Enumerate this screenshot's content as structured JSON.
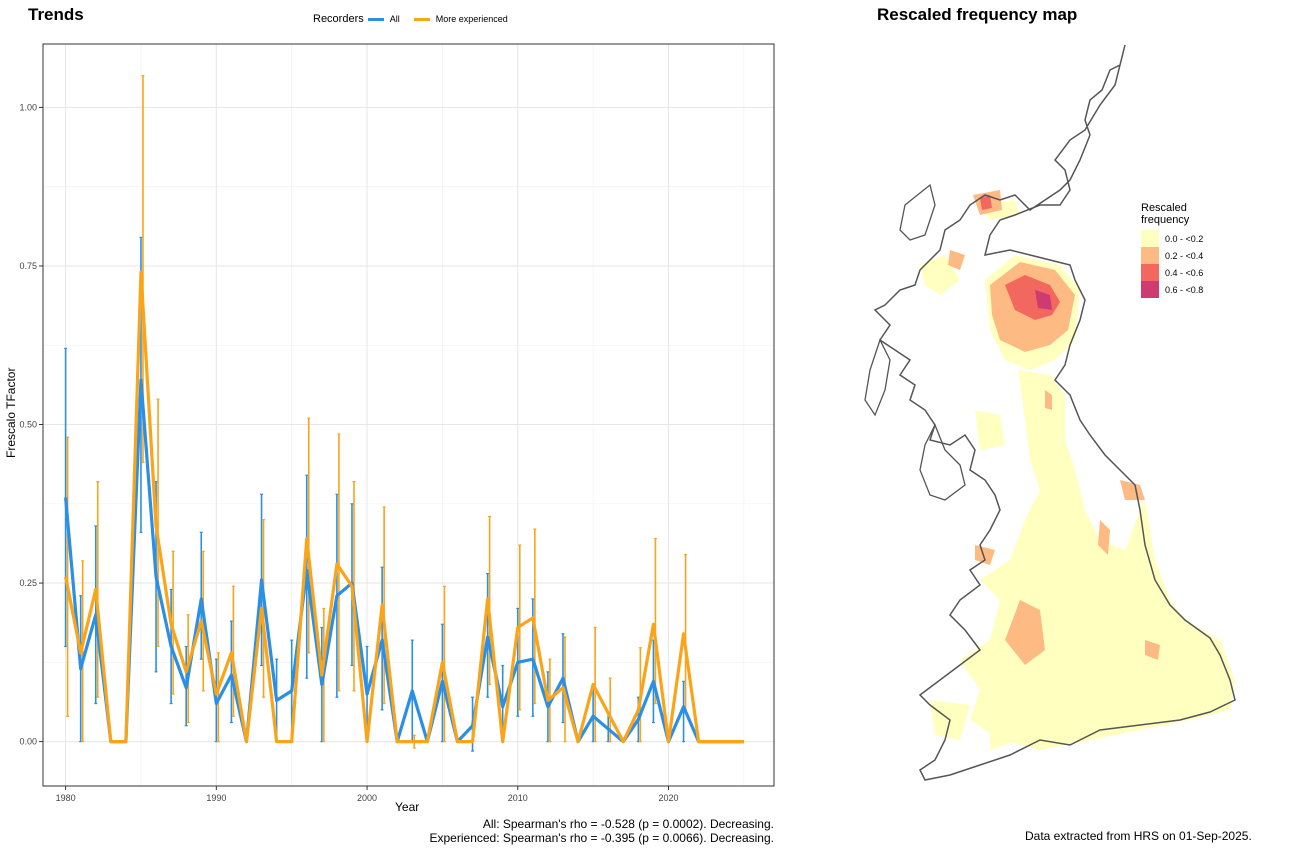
{
  "trends": {
    "title": "Trends",
    "legend_title": "Recorders",
    "series_labels": [
      "All",
      "More experienced"
    ],
    "stat_all": "All: Spearman's rho = -0.528 (p = 0.0002). Decreasing.",
    "stat_experienced": "Experienced: Spearman's rho = -0.395 (p = 0.0066). Decreasing."
  },
  "map": {
    "title": "Rescaled frequency map",
    "legend_title_line1": "Rescaled",
    "legend_title_line2": "frequency",
    "bins": [
      {
        "label": "0.0 - <0.2",
        "color": "#FFFFC0"
      },
      {
        "label": "0.2 - <0.4",
        "color": "#FDBA82"
      },
      {
        "label": "0.4 - <0.6",
        "color": "#F2675E"
      },
      {
        "label": "0.6 - <0.8",
        "color": "#CE3A72"
      }
    ],
    "footnote": "Data extracted from HRS on 01-Sep-2025."
  },
  "chart_data": {
    "type": "line",
    "title": "Trends",
    "xlabel": "Year",
    "ylabel": "Frescalo TFactor",
    "xlim": [
      1978.5,
      2027
    ],
    "ylim": [
      -0.07,
      1.1
    ],
    "x_ticks": [
      1980,
      1990,
      2000,
      2010,
      2020
    ],
    "y_ticks": [
      0.0,
      0.25,
      0.5,
      0.75,
      1.0
    ],
    "y_tick_labels": [
      "0.00",
      "0.25",
      "0.50",
      "0.75",
      "1.00"
    ],
    "grid": true,
    "legend_position": "top",
    "x": [
      1980,
      1981,
      1982,
      1983,
      1984,
      1985,
      1986,
      1987,
      1988,
      1989,
      1990,
      1991,
      1992,
      1993,
      1994,
      1995,
      1996,
      1997,
      1998,
      1999,
      2000,
      2001,
      2002,
      2003,
      2004,
      2005,
      2006,
      2007,
      2008,
      2009,
      2010,
      2011,
      2012,
      2013,
      2014,
      2015,
      2016,
      2017,
      2018,
      2019,
      2020,
      2021,
      2022,
      2023,
      2024,
      2025
    ],
    "series": [
      {
        "name": "All",
        "color": "#2B8FE5",
        "values": [
          0.385,
          0.115,
          0.2,
          0.0,
          0.0,
          0.57,
          0.26,
          0.15,
          0.085,
          0.225,
          0.06,
          0.105,
          0.0,
          0.255,
          0.065,
          0.08,
          0.27,
          0.09,
          0.23,
          0.25,
          0.075,
          0.16,
          0.0,
          0.08,
          0.0,
          0.095,
          0.0,
          0.025,
          0.165,
          0.055,
          0.125,
          0.13,
          0.055,
          0.1,
          0.0,
          0.04,
          0.02,
          0.0,
          0.035,
          0.095,
          0.0,
          0.055,
          0.0,
          0.0,
          0.0,
          0.0
        ],
        "lower": [
          0.15,
          0.0,
          0.06,
          0.0,
          0.0,
          0.33,
          0.11,
          0.06,
          0.025,
          0.13,
          0.0,
          0.03,
          0.0,
          0.12,
          0.0,
          0.0,
          0.1,
          0.0,
          0.07,
          0.12,
          0.0,
          0.05,
          0.0,
          0.0,
          0.0,
          0.0,
          0.0,
          -0.015,
          0.07,
          0.0,
          0.04,
          0.04,
          0.0,
          0.03,
          0.0,
          0.0,
          0.0,
          0.0,
          0.0,
          0.03,
          0.0,
          0.0,
          0.0,
          0.0,
          0.0,
          0.0
        ],
        "upper": [
          0.62,
          0.23,
          0.34,
          0.0,
          0.0,
          0.795,
          0.41,
          0.24,
          0.15,
          0.33,
          0.13,
          0.19,
          0.0,
          0.39,
          0.13,
          0.16,
          0.42,
          0.18,
          0.39,
          0.375,
          0.15,
          0.275,
          0.0,
          0.16,
          0.0,
          0.185,
          0.0,
          0.07,
          0.265,
          0.12,
          0.21,
          0.225,
          0.11,
          0.17,
          0.0,
          0.085,
          0.045,
          0.0,
          0.07,
          0.16,
          0.0,
          0.095,
          0.0,
          0.0,
          0.0,
          0.0
        ]
      },
      {
        "name": "More experienced",
        "color": "#FAA41A",
        "values": [
          0.26,
          0.14,
          0.24,
          0.0,
          0.0,
          0.74,
          0.34,
          0.185,
          0.11,
          0.19,
          0.075,
          0.14,
          0.0,
          0.21,
          0.0,
          0.0,
          0.32,
          0.105,
          0.28,
          0.245,
          0.0,
          0.215,
          0.0,
          0.0,
          0.0,
          0.125,
          0.0,
          0.0,
          0.225,
          0.0,
          0.18,
          0.195,
          0.065,
          0.085,
          0.0,
          0.09,
          0.045,
          0.0,
          0.05,
          0.185,
          0.0,
          0.17,
          0.0,
          0.0,
          0.0,
          0.0
        ],
        "lower": [
          0.04,
          0.0,
          0.07,
          0.0,
          0.0,
          0.44,
          0.15,
          0.075,
          0.03,
          0.08,
          0.0,
          0.04,
          0.0,
          0.07,
          0.0,
          0.0,
          0.14,
          0.0,
          0.08,
          0.08,
          0.0,
          0.06,
          0.0,
          -0.01,
          0.0,
          0.0,
          0.0,
          0.0,
          0.09,
          0.0,
          0.05,
          0.06,
          0.0,
          0.0,
          0.0,
          0.0,
          0.0,
          0.0,
          0.0,
          0.06,
          0.0,
          0.05,
          0.0,
          0.0,
          0.0,
          0.0
        ],
        "upper": [
          0.48,
          0.285,
          0.41,
          0.0,
          0.0,
          1.05,
          0.54,
          0.3,
          0.2,
          0.3,
          0.14,
          0.245,
          0.0,
          0.35,
          0.0,
          0.0,
          0.51,
          0.21,
          0.485,
          0.41,
          0.0,
          0.37,
          0.0,
          0.01,
          0.0,
          0.245,
          0.0,
          0.0,
          0.355,
          0.0,
          0.31,
          0.335,
          0.13,
          0.165,
          0.0,
          0.18,
          0.1,
          0.0,
          0.148,
          0.32,
          0.0,
          0.295,
          0.0,
          0.0,
          0.0,
          0.0
        ]
      }
    ]
  }
}
